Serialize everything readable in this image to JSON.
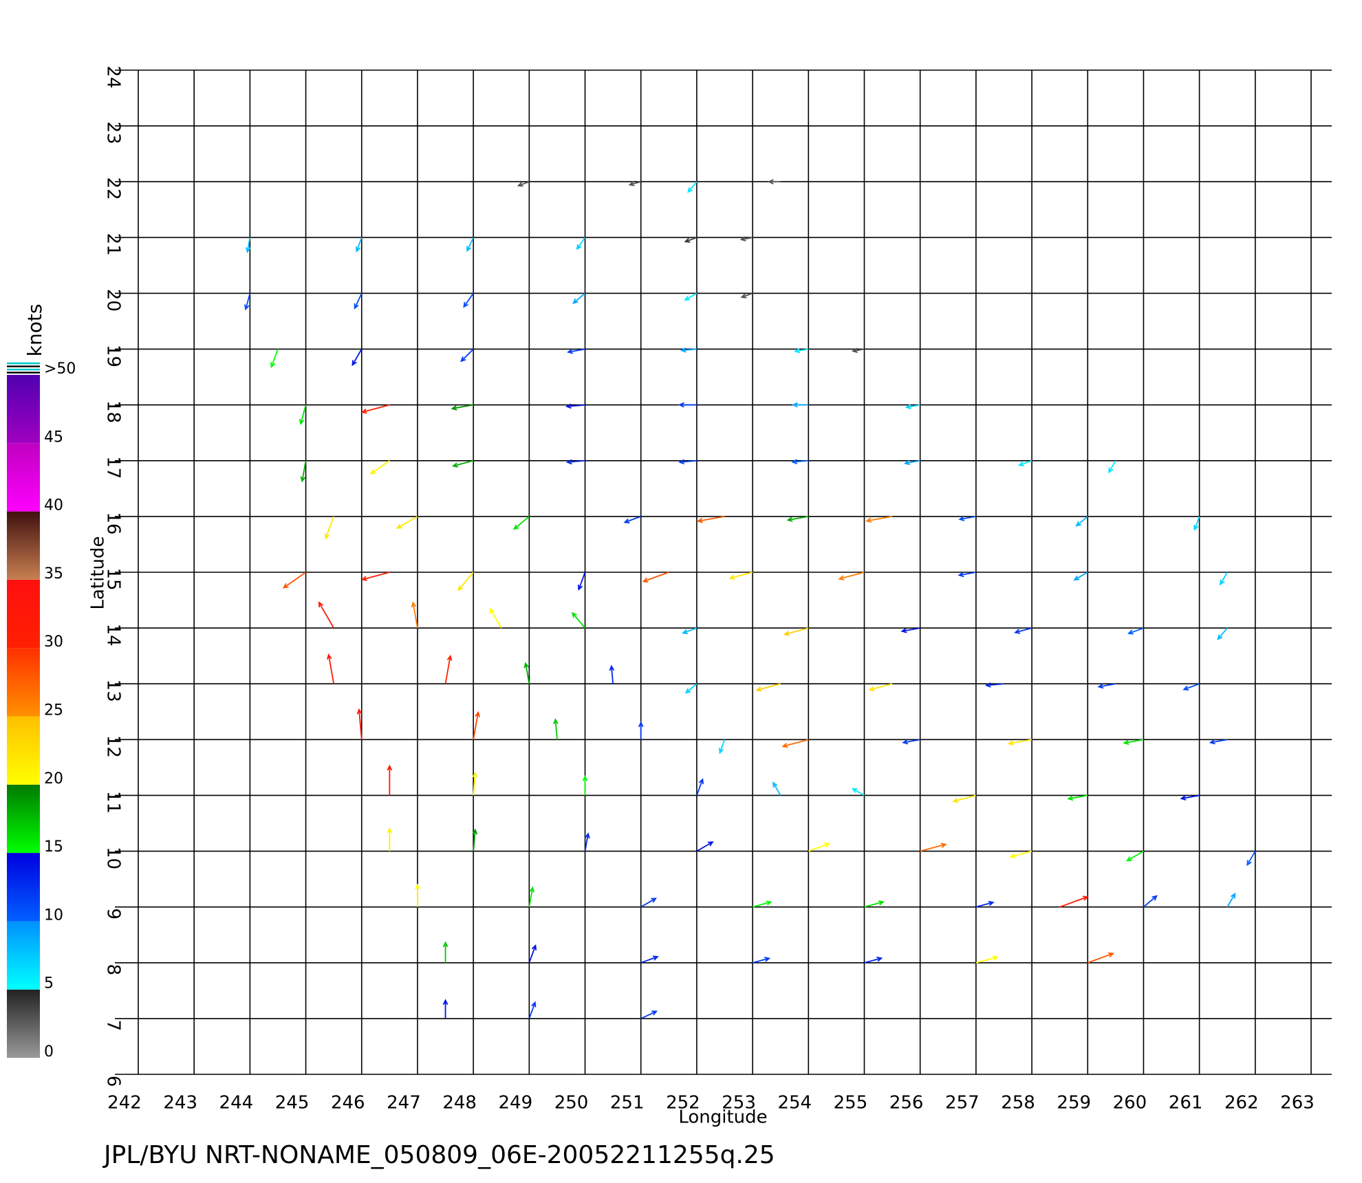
{
  "chart_data": {
    "type": "vector",
    "footer": "JPL/BYU NRT-NONAME_050809_06E-20052211255q.25",
    "xlabel": "Longitude",
    "ylabel": "Latitude",
    "xlim": [
      242,
      263
    ],
    "ylim": [
      6,
      24
    ],
    "xticks": [
      242,
      243,
      244,
      245,
      246,
      247,
      248,
      249,
      250,
      251,
      252,
      253,
      254,
      255,
      256,
      257,
      258,
      259,
      260,
      261,
      262,
      263
    ],
    "yticks": [
      6,
      7,
      8,
      9,
      10,
      11,
      12,
      13,
      14,
      15,
      16,
      17,
      18,
      19,
      20,
      21,
      22,
      23,
      24
    ],
    "grid": true,
    "colorbar": {
      "label": "knots",
      "ticks": [
        0,
        5,
        10,
        15,
        20,
        25,
        30,
        35,
        40,
        45,
        {
          "value": 50,
          "label": ">50"
        }
      ],
      "colors": [
        [
          "#999999",
          "#222222"
        ],
        [
          "#00ffff",
          "#0090ff"
        ],
        [
          "#0060ff",
          "#0000e0"
        ],
        [
          "#00ff00",
          "#007a00"
        ],
        [
          "#ffff00",
          "#ffc000"
        ],
        [
          "#ff9000",
          "#ff3000"
        ],
        [
          "#ff2000",
          "#ff1010"
        ],
        [
          "#c88050",
          "#401010"
        ],
        [
          "#ff00ff",
          "#c000c0"
        ],
        [
          "#a000c0",
          "#5000b0"
        ]
      ],
      "over_color": "#00c8c8"
    },
    "vectors": [
      [
        244,
        21,
        8,
        260
      ],
      [
        246,
        21,
        8,
        250
      ],
      [
        248,
        21,
        8,
        245
      ],
      [
        250,
        21,
        7,
        235
      ],
      [
        252,
        21,
        4,
        200
      ],
      [
        253,
        21,
        3,
        190
      ],
      [
        249,
        22,
        3,
        200
      ],
      [
        251,
        22,
        3,
        195
      ],
      [
        252,
        22,
        6,
        230
      ],
      [
        253.5,
        22,
        3,
        180
      ],
      [
        244,
        20,
        11,
        255
      ],
      [
        246,
        20,
        11,
        245
      ],
      [
        248,
        20,
        11,
        235
      ],
      [
        250,
        20,
        9,
        220
      ],
      [
        252,
        20,
        6,
        210
      ],
      [
        253,
        20,
        3,
        200
      ],
      [
        244.5,
        19,
        15,
        250
      ],
      [
        246,
        19,
        14,
        240
      ],
      [
        248,
        19,
        12,
        225
      ],
      [
        250,
        19,
        12,
        190
      ],
      [
        252,
        19,
        9,
        185
      ],
      [
        254,
        19,
        6,
        190
      ],
      [
        255,
        19,
        3,
        190
      ],
      [
        245,
        18,
        16,
        255
      ],
      [
        246.5,
        18,
        30,
        195
      ],
      [
        248,
        18,
        19,
        190
      ],
      [
        250,
        18,
        14,
        185
      ],
      [
        252,
        18,
        12,
        180
      ],
      [
        254,
        18,
        9,
        180
      ],
      [
        256,
        18,
        7,
        190
      ],
      [
        245,
        17,
        18,
        260
      ],
      [
        246.5,
        17,
        21,
        215
      ],
      [
        248,
        17,
        18,
        195
      ],
      [
        250,
        17,
        13,
        185
      ],
      [
        252,
        17,
        12,
        185
      ],
      [
        254,
        17,
        10,
        185
      ],
      [
        256,
        17,
        9,
        190
      ],
      [
        258,
        17,
        6,
        200
      ],
      [
        259.5,
        17,
        6,
        240
      ],
      [
        245.5,
        16,
        22,
        250
      ],
      [
        247,
        16,
        22,
        210
      ],
      [
        249,
        16,
        16,
        220
      ],
      [
        251,
        16,
        12,
        200
      ],
      [
        252.5,
        16,
        28,
        190
      ],
      [
        254,
        16,
        18,
        190
      ],
      [
        255.5,
        16,
        26,
        190
      ],
      [
        257,
        16,
        11,
        190
      ],
      [
        259,
        16,
        8,
        220
      ],
      [
        261,
        16,
        7,
        250
      ],
      [
        245,
        15,
        28,
        215
      ],
      [
        246.5,
        15,
        30,
        195
      ],
      [
        248,
        15,
        22,
        230
      ],
      [
        250,
        15,
        14,
        250
      ],
      [
        251.5,
        15,
        28,
        200
      ],
      [
        253,
        15,
        22,
        195
      ],
      [
        255,
        15,
        26,
        195
      ],
      [
        257,
        15,
        12,
        190
      ],
      [
        259,
        15,
        9,
        210
      ],
      [
        261.5,
        15,
        7,
        240
      ],
      [
        245.5,
        14,
        32,
        120
      ],
      [
        247,
        14,
        26,
        100
      ],
      [
        248.5,
        14,
        20,
        120
      ],
      [
        250,
        14,
        16,
        130
      ],
      [
        252,
        14,
        8,
        200
      ],
      [
        254,
        14,
        24,
        195
      ],
      [
        256,
        14,
        14,
        190
      ],
      [
        258,
        14,
        12,
        195
      ],
      [
        260,
        14,
        10,
        200
      ],
      [
        261.5,
        14,
        8,
        230
      ],
      [
        245.5,
        13,
        32,
        100
      ],
      [
        247.5,
        13,
        30,
        80
      ],
      [
        249,
        13,
        18,
        100
      ],
      [
        250.5,
        13,
        13,
        95
      ],
      [
        252,
        13,
        7,
        220
      ],
      [
        253.5,
        13,
        24,
        195
      ],
      [
        255.5,
        13,
        22,
        195
      ],
      [
        257.5,
        13,
        13,
        185
      ],
      [
        259.5,
        13,
        12,
        190
      ],
      [
        261,
        13,
        11,
        200
      ],
      [
        246,
        12,
        33,
        95
      ],
      [
        248,
        12,
        29,
        80
      ],
      [
        249.5,
        12,
        17,
        95
      ],
      [
        251,
        12,
        12,
        90
      ],
      [
        252.5,
        12,
        7,
        250
      ],
      [
        254,
        12,
        27,
        195
      ],
      [
        256,
        12,
        12,
        190
      ],
      [
        258,
        12,
        22,
        190
      ],
      [
        260,
        12,
        16,
        190
      ],
      [
        261.5,
        12,
        12,
        190
      ],
      [
        246.5,
        11,
        32,
        90
      ],
      [
        248,
        11,
        21,
        85
      ],
      [
        250,
        11,
        15,
        90
      ],
      [
        252,
        11,
        12,
        70
      ],
      [
        253.5,
        11,
        8,
        120
      ],
      [
        255,
        11,
        6,
        150
      ],
      [
        257,
        11,
        22,
        195
      ],
      [
        259,
        11,
        16,
        190
      ],
      [
        261,
        11,
        14,
        190
      ],
      [
        246.5,
        10,
        21,
        90
      ],
      [
        248,
        10,
        19,
        85
      ],
      [
        250,
        10,
        13,
        80
      ],
      [
        252,
        10,
        14,
        30
      ],
      [
        254,
        10,
        20,
        20
      ],
      [
        256,
        10,
        27,
        15
      ],
      [
        258,
        10,
        20,
        195
      ],
      [
        260,
        10,
        15,
        210
      ],
      [
        262,
        10,
        10,
        240
      ],
      [
        247,
        9,
        20,
        90
      ],
      [
        249,
        9,
        16,
        80
      ],
      [
        251,
        9,
        12,
        30
      ],
      [
        253,
        9,
        15,
        15
      ],
      [
        255,
        9,
        16,
        15
      ],
      [
        257,
        9,
        13,
        15
      ],
      [
        258.5,
        9,
        32,
        20
      ],
      [
        260,
        9,
        12,
        40
      ],
      [
        261.5,
        9,
        9,
        60
      ],
      [
        247.5,
        8,
        17,
        90
      ],
      [
        249,
        8,
        14,
        70
      ],
      [
        251,
        8,
        13,
        20
      ],
      [
        253,
        8,
        12,
        15
      ],
      [
        255,
        8,
        13,
        15
      ],
      [
        257,
        8,
        20,
        15
      ],
      [
        259,
        8,
        28,
        20
      ],
      [
        247.5,
        7,
        14,
        90
      ],
      [
        249,
        7,
        12,
        70
      ],
      [
        251,
        7,
        12,
        25
      ]
    ]
  }
}
